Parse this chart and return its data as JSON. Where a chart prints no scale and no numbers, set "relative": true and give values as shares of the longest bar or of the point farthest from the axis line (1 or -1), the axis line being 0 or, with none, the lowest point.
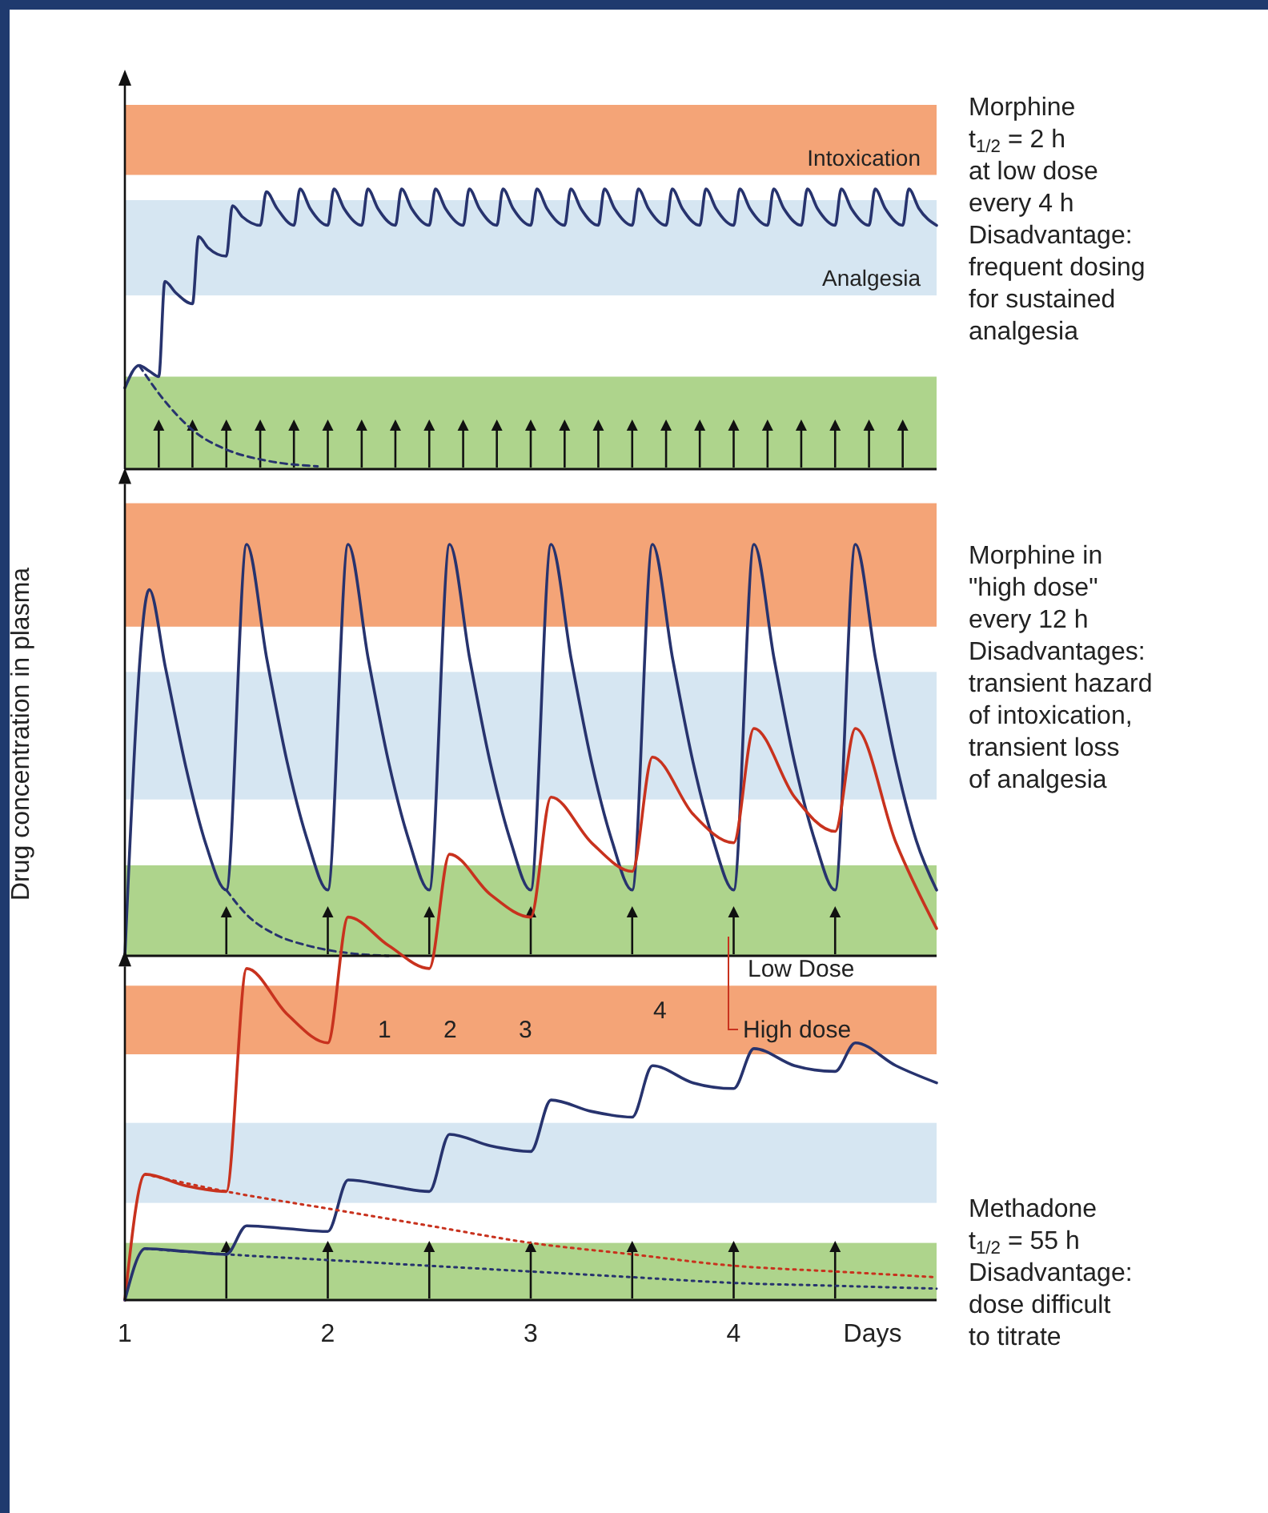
{
  "chart_data": [
    {
      "type": "line",
      "relative": true,
      "xlim": [
        1,
        5
      ],
      "tick_labels": false,
      "bands": [
        {
          "axis": "y",
          "from": 1.05,
          "to": 1.3,
          "label": "Intoxication",
          "color": "#f4a477"
        },
        {
          "axis": "y",
          "from": 0.62,
          "to": 0.96,
          "label": "Analgesia",
          "color": "#d6e6f2"
        },
        {
          "axis": "y",
          "from": 0,
          "to": 0.33,
          "color": "#aed48c"
        }
      ],
      "series": [
        {
          "color": "#27336e",
          "x": [
            1,
            1.07,
            1.12,
            1.167,
            1.197,
            1.25,
            1.333,
            1.363,
            1.41,
            1.5,
            1.53,
            1.58,
            1.667,
            1.697,
            1.75,
            1.833,
            1.863,
            1.913,
            2,
            2.03,
            2.08,
            2.167,
            2.197,
            2.247,
            2.333,
            2.363,
            2.413,
            2.5,
            2.53,
            2.58,
            2.667,
            2.697,
            2.747,
            2.833,
            2.863,
            2.913,
            3,
            3.03,
            3.08,
            3.167,
            3.197,
            3.247,
            3.333,
            3.363,
            3.413,
            3.5,
            3.53,
            3.58,
            3.667,
            3.697,
            3.747,
            3.833,
            3.863,
            3.913,
            4,
            4.03,
            4.08,
            4.167,
            4.197,
            4.247,
            4.333,
            4.363,
            4.413,
            4.5,
            4.53,
            4.58,
            4.667,
            4.697,
            4.747,
            4.833,
            4.863,
            4.913,
            5
          ],
          "values": [
            0.29,
            0.37,
            0.35,
            0.33,
            0.67,
            0.63,
            0.59,
            0.83,
            0.79,
            0.76,
            0.94,
            0.9,
            0.87,
            0.99,
            0.93,
            0.87,
            1,
            0.93,
            0.87,
            1,
            0.93,
            0.87,
            1,
            0.93,
            0.87,
            1,
            0.93,
            0.87,
            1,
            0.93,
            0.87,
            1,
            0.93,
            0.87,
            1,
            0.93,
            0.87,
            1,
            0.93,
            0.87,
            1,
            0.93,
            0.87,
            1,
            0.93,
            0.87,
            1,
            0.93,
            0.87,
            1,
            0.93,
            0.87,
            1,
            0.93,
            0.87,
            1,
            0.93,
            0.87,
            1,
            0.93,
            0.87,
            1,
            0.93,
            0.87,
            1,
            0.93,
            0.87,
            1,
            0.93,
            0.87,
            1,
            0.93,
            0.87
          ]
        },
        {
          "color": "#27336e",
          "line_style": "dashed",
          "x": [
            1.07,
            1.2,
            1.35,
            1.5,
            1.7,
            1.95
          ],
          "values": [
            0.37,
            0.24,
            0.13,
            0.07,
            0.03,
            0.01
          ]
        }
      ],
      "annotations": [
        "Morphine\nt$_{1/2}$ = 2 h\nat low dose\nevery 4 h\nDisadvantage:\nfrequent dosing\nfor sustained\nanalgesia"
      ]
    },
    {
      "type": "line",
      "relative": true,
      "xlim": [
        1,
        5
      ],
      "tick_labels": false,
      "ylabel": "Drug concentration in plasma",
      "bands": [
        {
          "axis": "y",
          "from": 0.8,
          "to": 1.1,
          "color": "#f4a477"
        },
        {
          "axis": "y",
          "from": 0.38,
          "to": 0.69,
          "color": "#d6e6f2"
        },
        {
          "axis": "y",
          "from": 0,
          "to": 0.22,
          "color": "#aed48c"
        }
      ],
      "series": [
        {
          "color": "#27336e",
          "x": [
            1,
            1.12,
            1.2,
            1.3,
            1.4,
            1.5,
            1.6,
            1.7,
            1.8,
            1.9,
            2,
            2.1,
            2.2,
            2.3,
            2.4,
            2.5,
            2.6,
            2.7,
            2.8,
            2.9,
            3,
            3.1,
            3.2,
            3.3,
            3.4,
            3.5,
            3.6,
            3.7,
            3.8,
            3.9,
            4,
            4.1,
            4.2,
            4.3,
            4.4,
            4.5,
            4.6,
            4.7,
            4.8,
            4.9,
            5
          ],
          "values": [
            0,
            0.89,
            0.7,
            0.46,
            0.27,
            0.16,
            1,
            0.72,
            0.47,
            0.28,
            0.16,
            1,
            0.72,
            0.47,
            0.28,
            0.16,
            1,
            0.72,
            0.47,
            0.28,
            0.16,
            1,
            0.72,
            0.47,
            0.28,
            0.16,
            1,
            0.72,
            0.47,
            0.28,
            0.16,
            1,
            0.72,
            0.47,
            0.28,
            0.16,
            1,
            0.72,
            0.47,
            0.28,
            0.16
          ]
        },
        {
          "color": "#27336e",
          "line_style": "dashed",
          "x": [
            1.5,
            1.6,
            1.75,
            1.9,
            2.05,
            2.3
          ],
          "values": [
            0.16,
            0.1,
            0.05,
            0.025,
            0.01,
            0
          ]
        }
      ],
      "annotations": [
        "Morphine in\n\"high dose\"\nevery 12 h\nDisadvantages:\ntransient hazard\nof intoxication,\ntransient loss\nof analgesia"
      ]
    },
    {
      "type": "line",
      "relative": true,
      "xlim": [
        1,
        5
      ],
      "xticks": [
        1,
        2,
        3,
        4
      ],
      "xlabel": "Days",
      "tick_labels": "x",
      "bands": [
        {
          "axis": "y",
          "from": 0.43,
          "to": 0.55,
          "color": "#f4a477"
        },
        {
          "axis": "y",
          "from": 0.17,
          "to": 0.31,
          "color": "#d6e6f2"
        },
        {
          "axis": "y",
          "from": 0,
          "to": 0.1,
          "color": "#aed48c"
        }
      ],
      "series": [
        {
          "color": "#c8321e",
          "x": [
            1,
            1.1,
            1.3,
            1.5,
            1.6,
            1.8,
            2,
            2.1,
            2.3,
            2.5,
            2.6,
            2.8,
            3,
            3.1,
            3.3,
            3.5,
            3.6,
            3.8,
            4,
            4.1,
            4.3,
            4.5,
            4.6,
            4.8,
            5
          ],
          "values": [
            0,
            0.22,
            0.2,
            0.19,
            0.58,
            0.5,
            0.45,
            0.67,
            0.62,
            0.58,
            0.78,
            0.71,
            0.67,
            0.88,
            0.8,
            0.75,
            0.95,
            0.85,
            0.8,
            1,
            0.88,
            0.82,
            1,
            0.8,
            0.65
          ]
        },
        {
          "color": "#27336e",
          "x": [
            1,
            1.1,
            1.3,
            1.5,
            1.6,
            1.8,
            2,
            2.1,
            2.3,
            2.5,
            2.6,
            2.8,
            3,
            3.1,
            3.3,
            3.5,
            3.6,
            3.8,
            4,
            4.1,
            4.3,
            4.5,
            4.6,
            4.8,
            5
          ],
          "values": [
            0,
            0.09,
            0.085,
            0.08,
            0.13,
            0.125,
            0.12,
            0.21,
            0.2,
            0.19,
            0.29,
            0.27,
            0.26,
            0.35,
            0.33,
            0.32,
            0.41,
            0.38,
            0.37,
            0.44,
            0.41,
            0.4,
            0.45,
            0.41,
            0.38
          ]
        },
        {
          "color": "#c8321e",
          "line_style": "dotted",
          "x": [
            1.1,
            1.5,
            2,
            2.5,
            3,
            3.5,
            4,
            4.5,
            5
          ],
          "values": [
            0.22,
            0.19,
            0.16,
            0.13,
            0.1,
            0.08,
            0.06,
            0.05,
            0.04
          ]
        },
        {
          "color": "#27336e",
          "line_style": "dotted",
          "x": [
            1.1,
            1.5,
            2,
            2.5,
            3,
            3.5,
            4,
            4.5,
            5
          ],
          "values": [
            0.09,
            0.08,
            0.07,
            0.06,
            0.05,
            0.04,
            0.03,
            0.025,
            0.02
          ]
        }
      ],
      "annotations": [
        "High dose",
        "Low Dose",
        "1",
        "2",
        "3",
        "4",
        "Methadone\nt$_{1/2}$ = 55 h\nDisadvantage:\ndose difficult\nto titrate"
      ]
    }
  ]
}
